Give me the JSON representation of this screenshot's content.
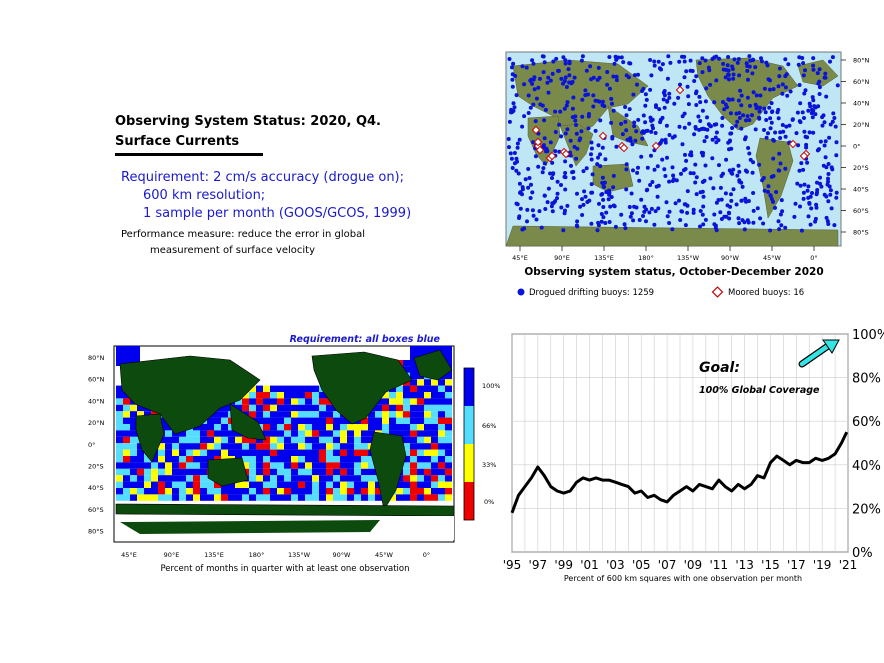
{
  "header": {
    "title_line1": "Observing System Status:  2020, Q4.",
    "title_line2": "Surface Currents"
  },
  "requirement": {
    "line1": "Requirement: 2 cm/s accuracy (drogue on);",
    "line2": "600 km resolution;",
    "line3": "1 sample per month (GOOS/GCOS, 1999)"
  },
  "performance": {
    "line1": "Performance measure: reduce the error in global",
    "line2": "measurement of surface velocity"
  },
  "colors": {
    "ocean": "#bfe6f5",
    "land": "#7a8a4a",
    "drifter": "#0a14d8",
    "moored": "#cc0000",
    "box_blue": "#0000ee",
    "box_cyan": "#55ddff",
    "box_yellow": "#ffff00",
    "box_red": "#ee0000",
    "map_land_dark": "#0d4a0d",
    "arrow": "#33e5e5"
  },
  "map_status": {
    "title": "Observing system status, October-December 2020",
    "lat_labels": [
      "80°N",
      "60°N",
      "40°N",
      "20°N",
      "0°",
      "20°S",
      "40°S",
      "60°S",
      "80°S"
    ],
    "lon_labels": [
      "45°E",
      "90°E",
      "135°E",
      "180°",
      "135°W",
      "90°W",
      "45°W",
      "0°"
    ],
    "legend_drifting": "Drogued drifting buoys: 1259",
    "legend_moored": "Moored buoys: 16"
  },
  "map_boxes": {
    "requirement_label": "Requirement: all boxes blue",
    "lat_labels": [
      "80°N",
      "60°N",
      "40°N",
      "20°N",
      "0°",
      "20°S",
      "40°S",
      "60°S",
      "80°S"
    ],
    "lon_labels": [
      "45°E",
      "90°E",
      "135°E",
      "180°",
      "135°W",
      "90°W",
      "45°W",
      "0°"
    ],
    "caption": "Percent of months in quarter with at least one observation",
    "colorbar_labels": [
      "100%",
      "66%",
      "33%",
      "0%"
    ]
  },
  "chart_data": {
    "type": "line",
    "caption": "Percent of 600 km squares with one observation per month",
    "annotation_goal": "Goal:",
    "annotation_coverage": "100% Global Coverage",
    "x_tick_labels": [
      "'95",
      "'97",
      "'99",
      "'01",
      "'03",
      "'05",
      "'07",
      "'09",
      "'11",
      "'13",
      "'15",
      "'17",
      "'19",
      "'21"
    ],
    "y_tick_labels": [
      "0%",
      "20%",
      "40%",
      "60%",
      "80%",
      "100%"
    ],
    "xlim": [
      1995,
      2021
    ],
    "ylim": [
      0,
      100
    ],
    "x": [
      1995.0,
      1995.5,
      1996.0,
      1996.5,
      1997.0,
      1997.5,
      1998.0,
      1998.5,
      1999.0,
      1999.5,
      2000.0,
      2000.5,
      2001.0,
      2001.5,
      2002.0,
      2002.5,
      2003.0,
      2003.5,
      2004.0,
      2004.5,
      2005.0,
      2005.5,
      2006.0,
      2006.5,
      2007.0,
      2007.5,
      2008.0,
      2008.5,
      2009.0,
      2009.5,
      2010.0,
      2010.5,
      2011.0,
      2011.5,
      2012.0,
      2012.5,
      2013.0,
      2013.5,
      2014.0,
      2014.5,
      2015.0,
      2015.5,
      2016.0,
      2016.5,
      2017.0,
      2017.5,
      2018.0,
      2018.5,
      2019.0,
      2019.5,
      2020.0,
      2020.5,
      2020.9
    ],
    "values": [
      18,
      26,
      30,
      34,
      39,
      35,
      30,
      28,
      27,
      28,
      32,
      34,
      33,
      34,
      33,
      33,
      32,
      31,
      30,
      27,
      28,
      25,
      26,
      24,
      23,
      26,
      28,
      30,
      28,
      31,
      30,
      29,
      33,
      30,
      28,
      31,
      29,
      31,
      35,
      34,
      41,
      44,
      42,
      40,
      42,
      41,
      41,
      43,
      42,
      43,
      45,
      50,
      55
    ]
  }
}
